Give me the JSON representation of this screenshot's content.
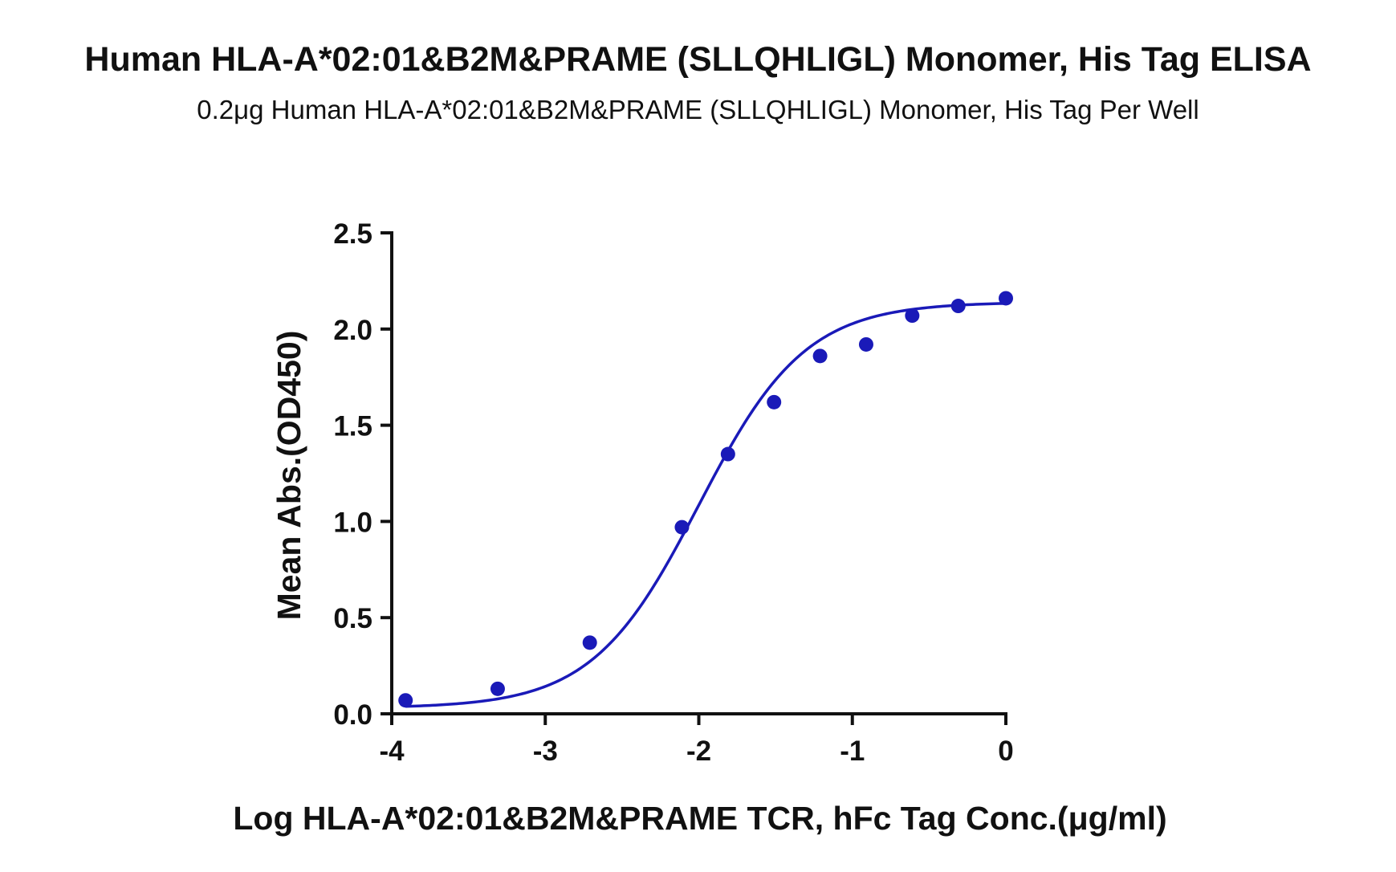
{
  "chart_data": {
    "type": "scatter",
    "title": "Human HLA-A*02:01&B2M&PRAME (SLLQHLIGL) Monomer, His Tag ELISA",
    "subtitle": "0.2μg Human HLA-A*02:01&B2M&PRAME (SLLQHLIGL) Monomer, His Tag Per Well",
    "xlabel": "Log HLA-A*02:01&B2M&PRAME TCR, hFc Tag Conc.(μg/ml)",
    "ylabel": "Mean Abs.(OD450)",
    "xlim": [
      -4,
      0
    ],
    "ylim": [
      0,
      2.5
    ],
    "xticks": [
      -4,
      -3,
      -2,
      -1,
      0
    ],
    "yticks": [
      0,
      0.5,
      1.0,
      1.5,
      2.0,
      2.5
    ],
    "xtick_labels": [
      "-4",
      "-3",
      "-2",
      "-1",
      "0"
    ],
    "ytick_labels": [
      "0.0",
      "0.5",
      "1.0",
      "1.5",
      "2.0",
      "2.5"
    ],
    "grid": false,
    "legend": "none",
    "color": "#1a1ab8",
    "series": [
      {
        "points": [
          {
            "x": -3.91,
            "y": 0.07
          },
          {
            "x": -3.31,
            "y": 0.13
          },
          {
            "x": -2.71,
            "y": 0.37
          },
          {
            "x": -2.11,
            "y": 0.97
          },
          {
            "x": -1.81,
            "y": 1.35
          },
          {
            "x": -1.51,
            "y": 1.62
          },
          {
            "x": -1.21,
            "y": 1.86
          },
          {
            "x": -0.91,
            "y": 1.92
          },
          {
            "x": -0.61,
            "y": 2.07
          },
          {
            "x": -0.31,
            "y": 2.12
          },
          {
            "x": 0.0,
            "y": 2.16
          }
        ],
        "fit": {
          "model": "4PL",
          "bottom": 0.03,
          "top": 2.14,
          "logEC50": -2.0,
          "hill": 1.25,
          "x_range": [
            -3.91,
            0.0
          ]
        }
      }
    ]
  }
}
